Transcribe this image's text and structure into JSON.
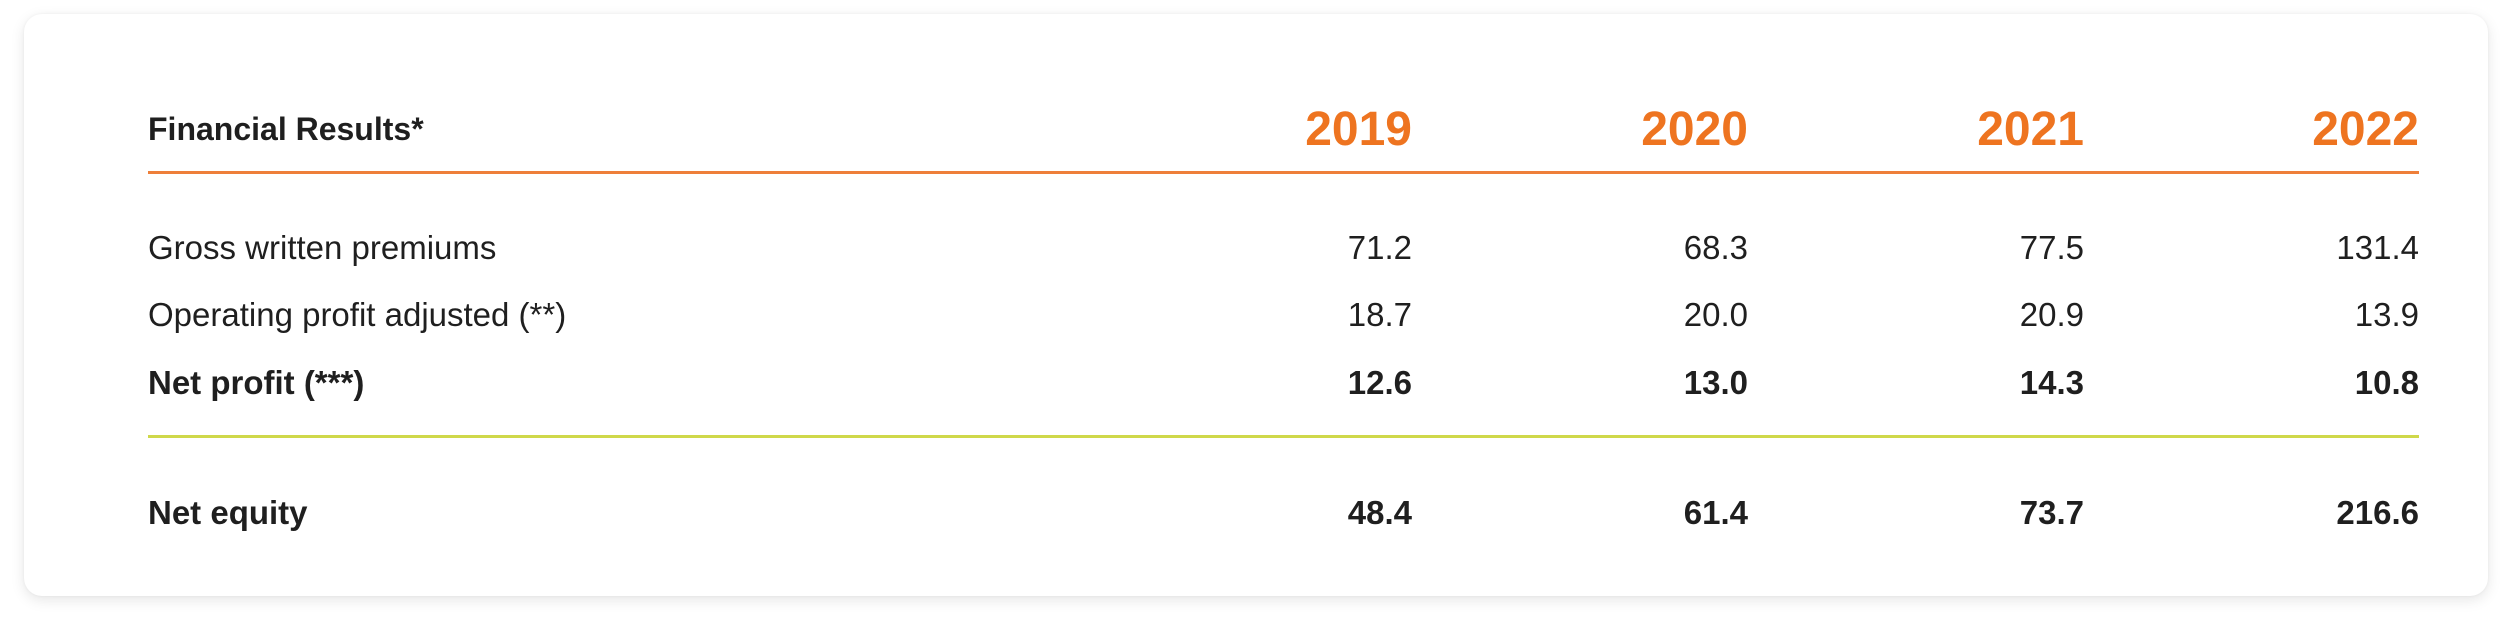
{
  "table": {
    "header": {
      "title": "Financial Results*",
      "years": [
        "2019",
        "2020",
        "2021",
        "2022"
      ]
    },
    "rows": [
      {
        "label": "Gross written premiums",
        "values": [
          "71.2",
          "68.3",
          "77.5",
          "131.4"
        ],
        "bold": false
      },
      {
        "label": "Operating profit adjusted (**)",
        "values": [
          "18.7",
          "20.0",
          "20.9",
          "13.9"
        ],
        "bold": false
      },
      {
        "label": "Net profit (***)",
        "values": [
          "12.6",
          "13.0",
          "14.3",
          "10.8"
        ],
        "bold": true
      }
    ],
    "summary": {
      "label": "Net equity",
      "values": [
        "48.4",
        "61.4",
        "73.7",
        "216.6"
      ]
    }
  },
  "colors": {
    "accent": "#ee7420",
    "header_rule": "#ee7f3a",
    "summary_rule": "#cfd84a"
  }
}
